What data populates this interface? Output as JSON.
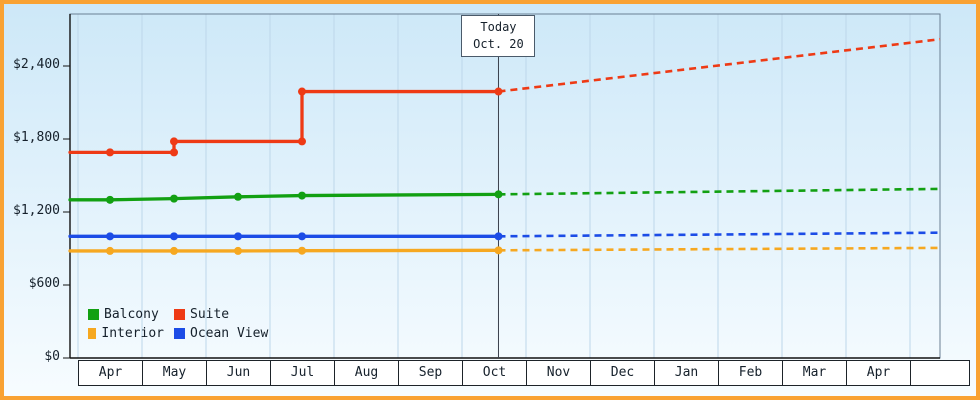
{
  "frame": {
    "border_color": "#f9a233",
    "bg_gradient_top": "#cde8f8",
    "bg_gradient_bottom": "#f7fcff"
  },
  "chart_data": {
    "type": "line",
    "x_categories": [
      "Apr",
      "May",
      "Jun",
      "Jul",
      "Aug",
      "Sep",
      "Oct",
      "Nov",
      "Dec",
      "Jan",
      "Feb",
      "Mar",
      "Apr"
    ],
    "y_axis": {
      "tick_values": [
        0,
        600,
        1200,
        1800,
        2400
      ],
      "tick_labels": [
        "$0",
        "$600",
        "$1,200",
        "$1,800",
        "$2,400"
      ],
      "ylim": [
        0,
        2830
      ]
    },
    "annotation": {
      "label_line1": "Today",
      "label_line2": "Oct. 20",
      "x": "Oct 20",
      "x_index": 6.07
    },
    "grid": "vertical-month-lines",
    "legend_position": "bottom-left",
    "solid_segment": "history (Apr to Oct 20)",
    "dashed_segment": "forecast (after Oct 20)",
    "series": [
      {
        "name": "Balcony",
        "color": "#12a012",
        "points": [
          {
            "x": "Apr",
            "y": 1300
          },
          {
            "x": "May",
            "y": 1310
          },
          {
            "x": "Jun",
            "y": 1325
          },
          {
            "x": "Jul",
            "y": 1335
          },
          {
            "x": "Oct 20",
            "y": 1345
          }
        ],
        "forecast_end_y": 1390
      },
      {
        "name": "Suite",
        "color": "#ee3a15",
        "points": [
          {
            "x": "Apr",
            "y": 1690
          },
          {
            "x": "May",
            "y": 1690
          },
          {
            "x": "May",
            "y": 1780
          },
          {
            "x": "Jul",
            "y": 1780
          },
          {
            "x": "Jul",
            "y": 2190
          },
          {
            "x": "Oct 20",
            "y": 2190
          }
        ],
        "forecast_end_y": 2620
      },
      {
        "name": "Interior",
        "color": "#f6a820",
        "points": [
          {
            "x": "Apr",
            "y": 880
          },
          {
            "x": "May",
            "y": 880
          },
          {
            "x": "Jun",
            "y": 880
          },
          {
            "x": "Jul",
            "y": 882
          },
          {
            "x": "Oct 20",
            "y": 885
          }
        ],
        "forecast_end_y": 905
      },
      {
        "name": "Ocean View",
        "color": "#1c4ce6",
        "points": [
          {
            "x": "Apr",
            "y": 1000
          },
          {
            "x": "May",
            "y": 1000
          },
          {
            "x": "Jun",
            "y": 1000
          },
          {
            "x": "Jul",
            "y": 1000
          },
          {
            "x": "Oct 20",
            "y": 1000
          }
        ],
        "forecast_end_y": 1030
      }
    ]
  }
}
